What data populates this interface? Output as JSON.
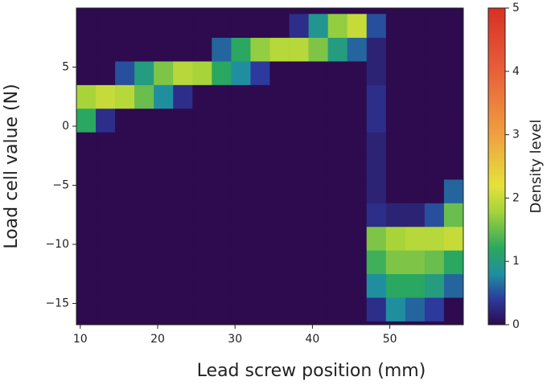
{
  "chart_data": {
    "type": "heatmap",
    "xlabel": "Lead screw position (mm)",
    "ylabel": "Load cell value (N)",
    "xlim": [
      9.5,
      59.5
    ],
    "ylim": [
      -16.8,
      10
    ],
    "xticks": [
      10,
      20,
      30,
      40,
      50
    ],
    "yticks": [
      {
        "value": -15,
        "label": "−15"
      },
      {
        "value": -10,
        "label": "−10"
      },
      {
        "value": -5,
        "label": "−5"
      },
      0,
      5
    ],
    "xbins": [
      9.5,
      12,
      14.5,
      17,
      19.5,
      22,
      24.5,
      27,
      29.5,
      32,
      34.5,
      37,
      39.5,
      42,
      44.5,
      47,
      49.5,
      52,
      54.5,
      57,
      59.5
    ],
    "ybins": [
      -16.5,
      -14.5,
      -12.5,
      -10.5,
      -8.5,
      -6.5,
      -4.5,
      -2.5,
      -0.5,
      1.5,
      3.5,
      5.5,
      7.5,
      9.5
    ],
    "z": [
      [
        0,
        0,
        0,
        0,
        0,
        0,
        0,
        0,
        0,
        0,
        0,
        0,
        0,
        0,
        0,
        0.3,
        0.8,
        0.6,
        0.4,
        0
      ],
      [
        0,
        0,
        0,
        0,
        0,
        0,
        0,
        0,
        0,
        0,
        0,
        0,
        0,
        0,
        0,
        0.8,
        1.2,
        1.2,
        1.0,
        0.6
      ],
      [
        0,
        0,
        0,
        0,
        0,
        0,
        0,
        0,
        0,
        0,
        0,
        0,
        0,
        0,
        0,
        1.3,
        1.6,
        1.6,
        1.5,
        1.2
      ],
      [
        0,
        0,
        0,
        0,
        0,
        0,
        0,
        0,
        0,
        0,
        0,
        0,
        0,
        0,
        0,
        1.6,
        1.8,
        1.9,
        1.9,
        2.0
      ],
      [
        0,
        0,
        0,
        0,
        0,
        0,
        0,
        0,
        0,
        0,
        0,
        0,
        0,
        0,
        0,
        0.3,
        0.2,
        0.2,
        0.5,
        1.5
      ],
      [
        0,
        0,
        0,
        0,
        0,
        0,
        0,
        0,
        0,
        0,
        0,
        0,
        0,
        0,
        0,
        0.2,
        0,
        0,
        0,
        0.6
      ],
      [
        0,
        0,
        0,
        0,
        0,
        0,
        0,
        0,
        0,
        0,
        0,
        0,
        0,
        0,
        0,
        0.2,
        0,
        0,
        0,
        0
      ],
      [
        0,
        0,
        0,
        0,
        0,
        0,
        0,
        0,
        0,
        0,
        0,
        0,
        0,
        0,
        0,
        0.2,
        0,
        0,
        0,
        0
      ],
      [
        1.2,
        0.3,
        0,
        0,
        0,
        0,
        0,
        0,
        0,
        0,
        0,
        0,
        0,
        0,
        0,
        0.3,
        0,
        0,
        0,
        0
      ],
      [
        1.8,
        2.0,
        1.9,
        1.5,
        0.8,
        0.3,
        0,
        0,
        0,
        0,
        0,
        0,
        0,
        0,
        0,
        0.3,
        0,
        0,
        0,
        0
      ],
      [
        0,
        0,
        0.5,
        1.0,
        1.6,
        1.9,
        1.8,
        1.2,
        0.8,
        0.4,
        0,
        0,
        0,
        0,
        0,
        0.2,
        0,
        0,
        0,
        0
      ],
      [
        0,
        0,
        0,
        0,
        0,
        0,
        0,
        0.6,
        1.2,
        1.7,
        1.9,
        1.9,
        1.6,
        1.0,
        0.6,
        0.2,
        0,
        0,
        0,
        0
      ],
      [
        0,
        0,
        0,
        0,
        0,
        0,
        0,
        0,
        0,
        0,
        0,
        0.3,
        0.9,
        1.7,
        2.0,
        0.5,
        0,
        0,
        0,
        0
      ]
    ],
    "colorscale": [
      [
        0,
        "#2d0b4e"
      ],
      [
        0.4,
        "#2b3a9c"
      ],
      [
        0.8,
        "#1f8fa0"
      ],
      [
        1.2,
        "#2aa760"
      ],
      [
        1.8,
        "#a8d43a"
      ],
      [
        2.2,
        "#e5e23a"
      ],
      [
        3,
        "#f0a040"
      ],
      [
        4,
        "#e8603a"
      ],
      [
        5,
        "#d83024"
      ]
    ],
    "colorbar": {
      "label": "Density level",
      "lim": [
        0,
        5
      ],
      "ticks": [
        0,
        1,
        2,
        3,
        4,
        5
      ]
    }
  }
}
